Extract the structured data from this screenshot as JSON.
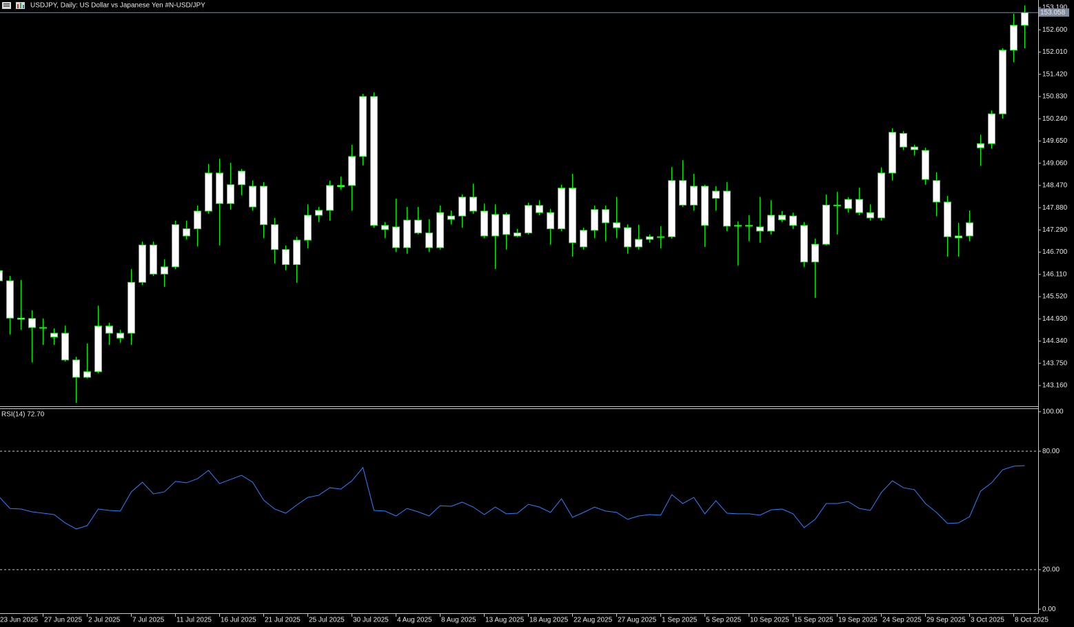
{
  "chart_data": [
    {
      "type": "candlestick",
      "title": "USDJPY, Daily:  US Dollar vs  Japanese Yen #N-USD/JPY",
      "categories": [
        "23 Jun 2025",
        null,
        null,
        null,
        "27 Jun 2025",
        null,
        null,
        null,
        "2 Jul 2025",
        null,
        null,
        null,
        "7 Jul 2025",
        null,
        null,
        null,
        "11 Jul 2025",
        null,
        null,
        null,
        "16 Jul 2025",
        null,
        null,
        null,
        "21 Jul 2025",
        null,
        null,
        null,
        "25 Jul 2025",
        null,
        null,
        null,
        "30 Jul 2025",
        null,
        null,
        null,
        "4 Aug 2025",
        null,
        null,
        null,
        "8 Aug 2025",
        null,
        null,
        null,
        "13 Aug 2025",
        null,
        null,
        null,
        "18 Aug 2025",
        null,
        null,
        null,
        "22 Aug 2025",
        null,
        null,
        null,
        "27 Aug 2025",
        null,
        null,
        null,
        "1 Sep 2025",
        null,
        null,
        null,
        "5 Sep 2025",
        null,
        null,
        null,
        "10 Sep 2025",
        null,
        null,
        null,
        "15 Sep 2025",
        null,
        null,
        null,
        "19 Sep 2025",
        null,
        null,
        null,
        "24 Sep 2025",
        null,
        null,
        null,
        "29 Sep 2025",
        null,
        null,
        null,
        "3 Oct 2025",
        null,
        null,
        null,
        "8 Oct 2025",
        null
      ],
      "open": [
        146.21,
        145.94,
        144.95,
        144.94,
        144.7,
        144.45,
        144.55,
        143.84,
        143.38,
        143.53,
        144.74,
        144.42,
        144.55,
        145.9,
        146.89,
        146.12,
        146.31,
        147.13,
        147.32,
        147.79,
        148.8,
        147.99,
        148.49,
        148.45,
        148.45,
        147.43,
        146.77,
        146.37,
        147.02,
        147.68,
        147.81,
        148.44,
        148.47,
        149.24,
        150.83,
        147.41,
        147.37,
        146.82,
        147.55,
        147.21,
        146.82,
        147.57,
        147.66,
        148.16,
        147.79,
        147.13,
        147.7,
        147.13,
        147.21,
        147.94,
        147.75,
        147.32,
        148.4,
        146.84,
        147.28,
        147.83,
        147.48,
        147.35,
        146.84,
        147.04,
        147.11,
        147.11,
        148.6,
        147.95,
        148.45,
        148.13,
        148.32,
        147.41,
        147.39,
        147.37,
        147.26,
        147.68,
        147.66,
        147.41,
        146.44,
        146.91,
        147.95,
        147.86,
        148.1,
        147.75,
        147.61,
        148.8,
        149.85,
        149.49,
        149.4,
        148.6,
        148.03,
        147.08,
        147.13,
        149.47,
        149.58,
        150.37,
        152.06,
        152.72
      ],
      "high": [
        146.3,
        146.07,
        145.96,
        145.16,
        144.94,
        144.68,
        144.75,
        143.93,
        144.28,
        145.28,
        144.83,
        144.64,
        146.25,
        146.98,
        146.98,
        146.51,
        147.54,
        147.54,
        147.94,
        149.04,
        149.18,
        149.07,
        148.91,
        148.6,
        148.56,
        147.61,
        146.88,
        147.11,
        147.97,
        147.9,
        148.6,
        148.71,
        149.55,
        150.9,
        150.94,
        147.5,
        148.12,
        147.9,
        147.9,
        147.57,
        147.94,
        147.81,
        148.23,
        148.52,
        147.99,
        147.97,
        147.75,
        147.32,
        148.01,
        148.08,
        147.85,
        148.49,
        148.78,
        147.35,
        147.94,
        147.94,
        148.17,
        147.44,
        147.43,
        147.17,
        147.39,
        148.96,
        149.14,
        148.78,
        148.49,
        148.45,
        148.56,
        147.52,
        147.68,
        148.17,
        148.08,
        147.79,
        147.75,
        147.5,
        147.06,
        148.23,
        148.3,
        148.16,
        148.41,
        147.97,
        148.95,
        149.99,
        149.91,
        149.55,
        149.47,
        148.82,
        148.19,
        147.48,
        147.81,
        149.82,
        150.46,
        152.11,
        153.03,
        153.25
      ],
      "low": [
        145.9,
        144.52,
        144.64,
        143.78,
        144.24,
        144.24,
        143.8,
        142.7,
        143.35,
        143.49,
        144.24,
        144.3,
        144.24,
        145.83,
        146.07,
        145.78,
        146.25,
        147.04,
        146.86,
        147.72,
        146.88,
        147.83,
        148.21,
        147.81,
        147.08,
        146.4,
        146.22,
        145.89,
        146.8,
        147.5,
        147.54,
        148.36,
        147.81,
        149.0,
        147.35,
        147.08,
        146.71,
        146.66,
        147.17,
        146.71,
        146.77,
        147.44,
        147.35,
        147.72,
        147.08,
        146.25,
        146.77,
        147.1,
        147.17,
        147.68,
        146.9,
        147.26,
        146.58,
        146.77,
        147.08,
        146.99,
        147.08,
        146.66,
        146.77,
        146.95,
        146.8,
        147.06,
        147.9,
        147.81,
        146.84,
        147.81,
        147.26,
        146.35,
        146.99,
        146.95,
        147.17,
        147.5,
        147.32,
        146.31,
        145.49,
        146.88,
        147.17,
        147.75,
        147.68,
        147.54,
        147.54,
        148.6,
        149.42,
        149.27,
        148.49,
        147.66,
        146.58,
        146.58,
        146.99,
        148.99,
        149.45,
        150.24,
        151.74,
        152.11
      ],
      "close": [
        145.94,
        144.95,
        144.92,
        144.7,
        144.69,
        144.55,
        143.84,
        143.38,
        143.53,
        144.74,
        144.55,
        144.55,
        145.9,
        146.89,
        146.12,
        146.31,
        147.43,
        147.32,
        147.79,
        148.8,
        147.99,
        148.49,
        148.85,
        147.9,
        147.43,
        146.77,
        146.37,
        147.02,
        147.68,
        147.81,
        148.47,
        148.47,
        149.24,
        150.83,
        147.41,
        147.3,
        146.82,
        147.55,
        147.21,
        146.82,
        147.75,
        147.66,
        148.16,
        147.79,
        147.13,
        147.7,
        147.17,
        147.21,
        147.94,
        147.75,
        147.32,
        148.4,
        146.95,
        147.28,
        147.83,
        147.48,
        147.35,
        146.84,
        147.04,
        147.11,
        147.11,
        148.6,
        147.95,
        148.45,
        147.41,
        148.32,
        147.39,
        147.39,
        147.41,
        147.26,
        147.68,
        147.56,
        147.41,
        146.44,
        146.91,
        147.95,
        147.95,
        148.1,
        147.75,
        147.61,
        148.8,
        149.88,
        149.49,
        149.42,
        148.63,
        148.03,
        147.11,
        147.13,
        147.48,
        149.58,
        150.37,
        152.06,
        152.72,
        153.058
      ],
      "color": "#00ff00",
      "body_color": "#ffffff",
      "ylim": [
        142.593,
        153.391
      ],
      "yticks": [
        {
          "value": 153.19,
          "label": "153.190"
        },
        {
          "value": 152.6,
          "label": "152.600"
        },
        {
          "value": 152.01,
          "label": "152.010"
        },
        {
          "value": 151.42,
          "label": "151.420"
        },
        {
          "value": 150.83,
          "label": "150.830"
        },
        {
          "value": 150.24,
          "label": "150.240"
        },
        {
          "value": 149.65,
          "label": "149.650"
        },
        {
          "value": 149.06,
          "label": "149.060"
        },
        {
          "value": 148.47,
          "label": "148.470"
        },
        {
          "value": 147.88,
          "label": "147.880"
        },
        {
          "value": 147.29,
          "label": "147.290"
        },
        {
          "value": 146.7,
          "label": "146.700"
        },
        {
          "value": 146.11,
          "label": "146.110"
        },
        {
          "value": 145.52,
          "label": "145.520"
        },
        {
          "value": 144.93,
          "label": "144.930"
        },
        {
          "value": 144.34,
          "label": "144.340"
        },
        {
          "value": 143.75,
          "label": "143.750"
        },
        {
          "value": 143.16,
          "label": "143.160"
        }
      ],
      "last_price": {
        "value": 153.058,
        "label": "153.058"
      },
      "last_price_color": "#7f8ba0"
    },
    {
      "type": "line",
      "title": "RSI(14) 72.70",
      "values": [
        57.0,
        51.0,
        50.7,
        49.3,
        48.6,
        47.9,
        43.7,
        40.6,
        42.3,
        50.7,
        50.0,
        49.7,
        59.4,
        64.3,
        58.4,
        59.4,
        64.7,
        64.0,
        66.1,
        70.3,
        63.6,
        65.7,
        67.8,
        64.3,
        55.2,
        50.7,
        48.6,
        52.8,
        56.6,
        57.7,
        61.5,
        60.8,
        65.0,
        71.7,
        50.0,
        49.7,
        47.2,
        51.0,
        49.3,
        47.2,
        52.4,
        52.1,
        54.2,
        51.7,
        47.9,
        51.7,
        48.3,
        48.6,
        53.1,
        51.7,
        49.0,
        55.9,
        46.5,
        49.0,
        51.7,
        49.7,
        49.0,
        45.5,
        47.2,
        47.9,
        47.6,
        58.0,
        53.5,
        56.6,
        48.3,
        54.9,
        48.6,
        48.3,
        48.3,
        47.6,
        50.3,
        50.7,
        48.3,
        41.3,
        45.5,
        53.5,
        53.5,
        54.5,
        51.0,
        50.0,
        59.1,
        65.0,
        61.5,
        60.5,
        53.5,
        49.0,
        43.4,
        43.7,
        46.9,
        59.8,
        64.0,
        70.6,
        72.4,
        72.7
      ],
      "color": "#2f7fff",
      "ylim": [
        -2.4,
        101.7
      ],
      "yticks": [
        {
          "value": 100,
          "label": "100.00"
        },
        {
          "value": 80,
          "label": "80.00"
        },
        {
          "value": 20,
          "label": "20.00"
        },
        {
          "value": 0,
          "label": "0.00"
        }
      ],
      "levels": [
        80,
        20
      ]
    }
  ]
}
